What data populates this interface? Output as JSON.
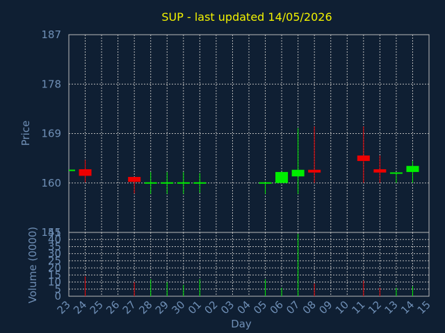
{
  "chart_data": {
    "type": "candlestick",
    "title": "SUP - last updated 14/05/2026",
    "ylabel": "Price",
    "volume_label": "Volume (0000)",
    "xlabel": "Day",
    "ylim": [
      151,
      187
    ],
    "yticks": [
      "187",
      "178",
      "169",
      "160",
      "151"
    ],
    "volume_ylim": [
      0,
      45
    ],
    "volume_ticks": [
      "45",
      "40",
      "35",
      "30",
      "25",
      "20",
      "15",
      "10",
      "5",
      "0"
    ],
    "categories": [
      "23",
      "24",
      "25",
      "26",
      "27",
      "28",
      "29",
      "30",
      "01",
      "02",
      "03",
      "04",
      "05",
      "06",
      "07",
      "08",
      "09",
      "10",
      "11",
      "12",
      "13",
      "14",
      "15"
    ],
    "colors": {
      "up": "#00ee00",
      "down": "#ee0000",
      "grid": "#bbbbbb",
      "background": "#0f1f33"
    },
    "candles": [
      {
        "day": "23",
        "open": 162.3,
        "high": 162.3,
        "low": 162.3,
        "close": 162.3,
        "volume": 0
      },
      {
        "day": "24",
        "open": 162.5,
        "high": 164.2,
        "low": 160.1,
        "close": 161.3,
        "volume": 14
      },
      {
        "day": "27",
        "open": 161.1,
        "high": 161.1,
        "low": 158.1,
        "close": 160.2,
        "volume": 10
      },
      {
        "day": "28",
        "open": 160.0,
        "high": 162.0,
        "low": 158.0,
        "close": 160.0,
        "volume": 12
      },
      {
        "day": "29",
        "open": 160.0,
        "high": 162.0,
        "low": 158.0,
        "close": 160.0,
        "volume": 10
      },
      {
        "day": "30",
        "open": 160.0,
        "high": 162.0,
        "low": 158.0,
        "close": 160.0,
        "volume": 8
      },
      {
        "day": "01",
        "open": 160.0,
        "high": 161.8,
        "low": 158.2,
        "close": 160.0,
        "volume": 12
      },
      {
        "day": "05",
        "open": 160.0,
        "high": 160.0,
        "low": 158.0,
        "close": 160.0,
        "volume": 12
      },
      {
        "day": "06",
        "open": 160.0,
        "high": 162.0,
        "low": 160.0,
        "close": 162.0,
        "volume": 6
      },
      {
        "day": "07",
        "open": 161.2,
        "high": 170.0,
        "low": 158.0,
        "close": 162.4,
        "volume": 44
      },
      {
        "day": "08",
        "open": 162.4,
        "high": 170.3,
        "low": 160.0,
        "close": 161.9,
        "volume": 9
      },
      {
        "day": "11",
        "open": 165.0,
        "high": 170.3,
        "low": 160.0,
        "close": 164.0,
        "volume": 11
      },
      {
        "day": "12",
        "open": 162.5,
        "high": 165.0,
        "low": 160.0,
        "close": 161.9,
        "volume": 6
      },
      {
        "day": "13",
        "open": 161.8,
        "high": 161.8,
        "low": 160.0,
        "close": 161.8,
        "volume": 6
      },
      {
        "day": "14",
        "open": 162.0,
        "high": 164.0,
        "low": 160.0,
        "close": 163.1,
        "volume": 7
      }
    ]
  }
}
